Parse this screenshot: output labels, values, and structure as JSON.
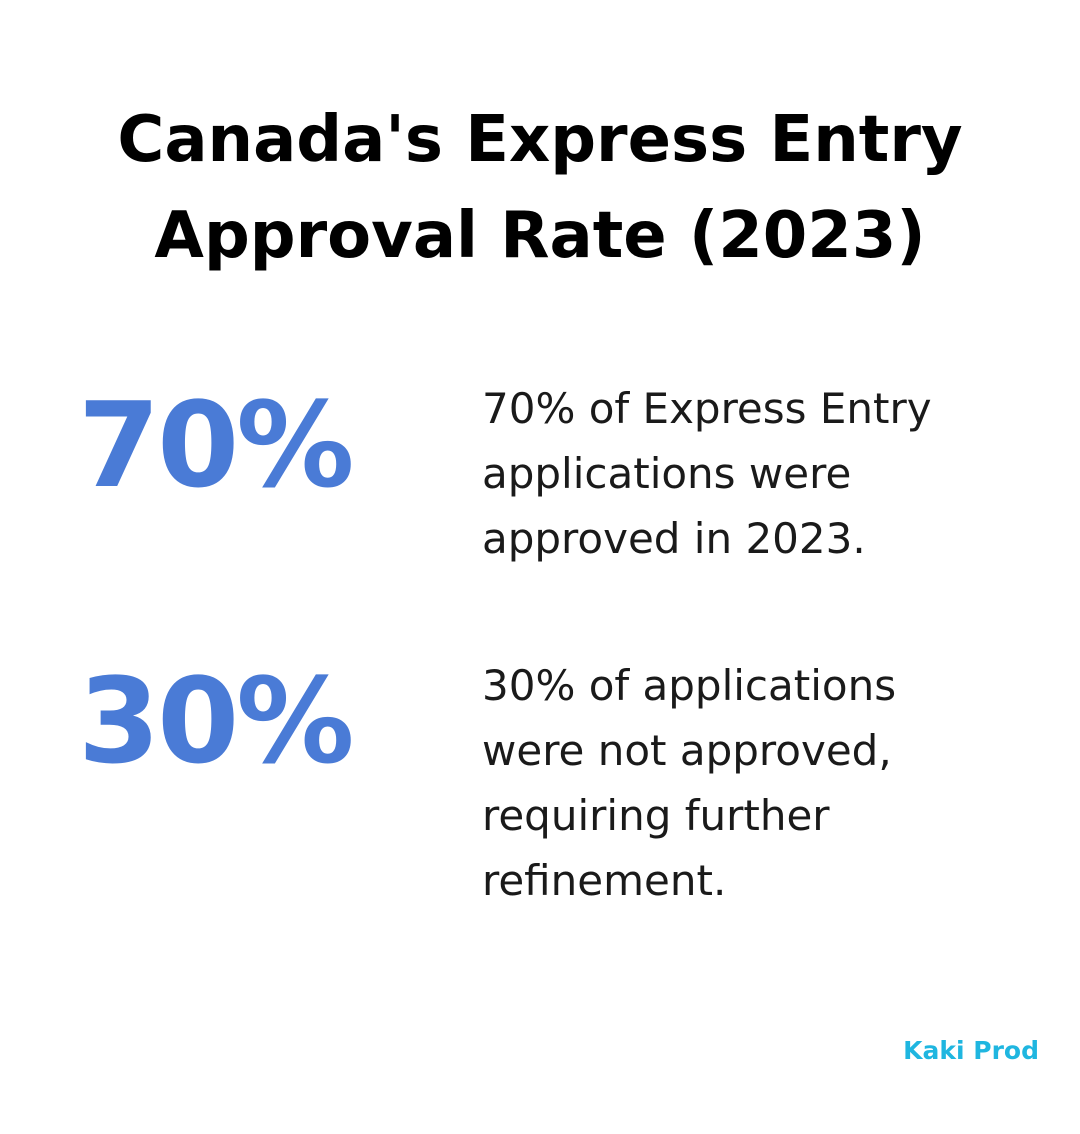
{
  "title": {
    "line1": "Canada's Express Entry",
    "line2": "Approval Rate (2023)"
  },
  "stats": [
    {
      "value": "70%",
      "lines": [
        "70% of Express Entry",
        "applications were",
        "approved in 2023."
      ]
    },
    {
      "value": "30%",
      "lines": [
        "30% of applications",
        "were not approved,",
        "requiring further",
        "refinement."
      ]
    }
  ],
  "brand": "Kaki Prod",
  "colors": {
    "accent": "#4a7bd6",
    "brand": "#1fb6e0",
    "title": "#000000",
    "text": "#1a1a1a"
  }
}
